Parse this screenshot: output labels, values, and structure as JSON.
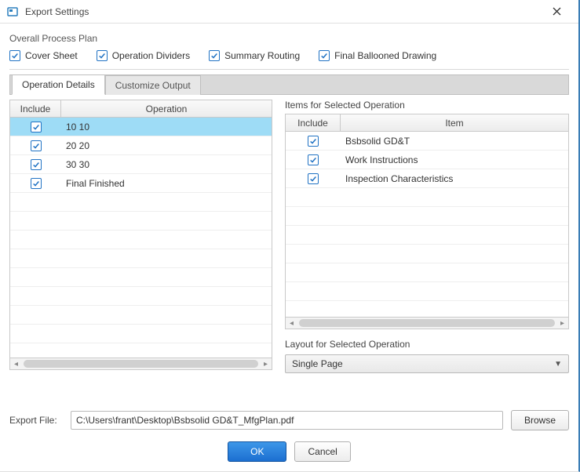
{
  "window": {
    "title": "Export Settings"
  },
  "overall": {
    "label": "Overall Process Plan",
    "checks": [
      {
        "label": "Cover Sheet",
        "checked": true
      },
      {
        "label": "Operation Dividers",
        "checked": true
      },
      {
        "label": "Summary Routing",
        "checked": true
      },
      {
        "label": "Final Ballooned Drawing",
        "checked": true
      }
    ]
  },
  "tabs": {
    "active": 0,
    "items": [
      {
        "label": "Operation Details"
      },
      {
        "label": "Customize Output"
      }
    ]
  },
  "operations": {
    "columns": {
      "include": "Include",
      "operation": "Operation"
    },
    "rows": [
      {
        "include": true,
        "operation": "10 10",
        "selected": true
      },
      {
        "include": true,
        "operation": "20 20",
        "selected": false
      },
      {
        "include": true,
        "operation": "30 30",
        "selected": false
      },
      {
        "include": true,
        "operation": "Final Finished",
        "selected": false
      }
    ],
    "blank_rows": 8
  },
  "items": {
    "title": "Items for Selected Operation",
    "columns": {
      "include": "Include",
      "item": "Item"
    },
    "rows": [
      {
        "include": true,
        "item": "Bsbsolid GD&T"
      },
      {
        "include": true,
        "item": "Work Instructions"
      },
      {
        "include": true,
        "item": "Inspection Characteristics"
      }
    ],
    "blank_rows": 6
  },
  "layout": {
    "label": "Layout for Selected Operation",
    "value": "Single Page"
  },
  "export": {
    "label": "Export File:",
    "value": "C:\\Users\\frant\\Desktop\\Bsbsolid GD&T_MfgPlan.pdf",
    "browse": "Browse"
  },
  "buttons": {
    "ok": "OK",
    "cancel": "Cancel"
  },
  "colors": {
    "accent": "#2173c4",
    "row_selected": "#9edcf6",
    "primary_btn_top": "#3d97e8",
    "primary_btn_bottom": "#1c6fd1"
  }
}
